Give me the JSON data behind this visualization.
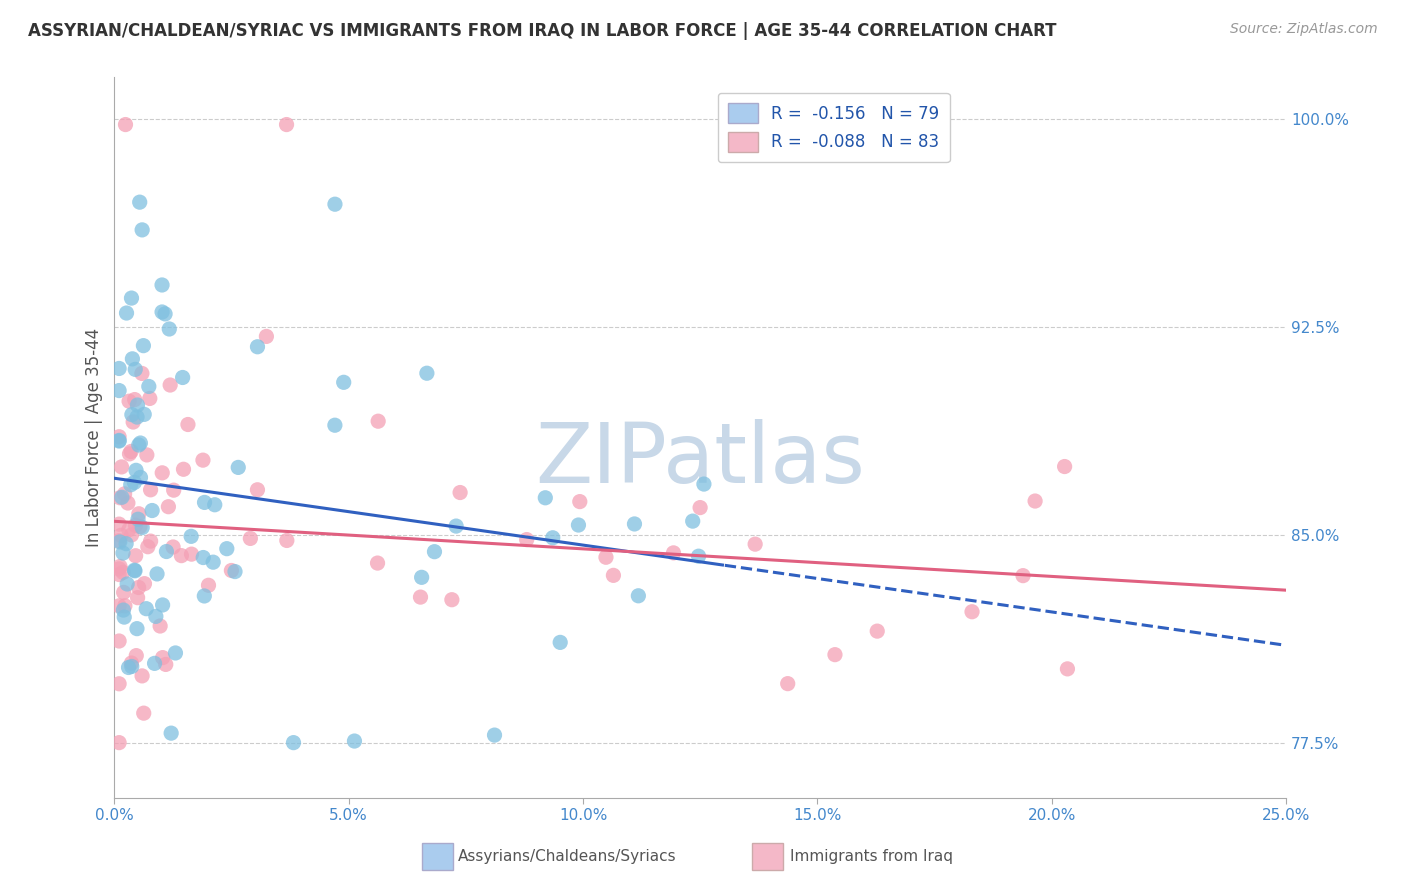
{
  "title": "ASSYRIAN/CHALDEAN/SYRIAC VS IMMIGRANTS FROM IRAQ IN LABOR FORCE | AGE 35-44 CORRELATION CHART",
  "source_text": "Source: ZipAtlas.com",
  "ylabel": "In Labor Force | Age 35-44",
  "xlim": [
    0.0,
    0.25
  ],
  "ylim": [
    0.755,
    1.015
  ],
  "xtick_vals": [
    0.0,
    0.05,
    0.1,
    0.15,
    0.2,
    0.25
  ],
  "xtick_labels": [
    "0.0%",
    "5.0%",
    "10.0%",
    "15.0%",
    "20.0%",
    "25.0%"
  ],
  "ytick_vals": [
    0.775,
    0.85,
    0.925,
    1.0
  ],
  "ytick_labels": [
    "77.5%",
    "85.0%",
    "92.5%",
    "100.0%"
  ],
  "series1_color": "#7fbfdf",
  "series2_color": "#f4a0b5",
  "trendline1_color": "#3060c0",
  "trendline2_color": "#e06080",
  "background_color": "#ffffff",
  "watermark": "ZIPatlas",
  "watermark_color": "#c8d8e8",
  "R1": -0.156,
  "N1": 79,
  "R2": -0.088,
  "N2": 83,
  "legend_labels": [
    "Assyrians/Chaldeans/Syriacs",
    "Immigrants from Iraq"
  ],
  "legend_box1_color": "#aaccee",
  "legend_box2_color": "#f4b8c8",
  "trendline1_dash_start": 0.13,
  "trendline2_dash_start": 0.25,
  "intercept1": 0.858,
  "slope1": -0.09,
  "intercept2": 0.851,
  "slope2": -0.045
}
